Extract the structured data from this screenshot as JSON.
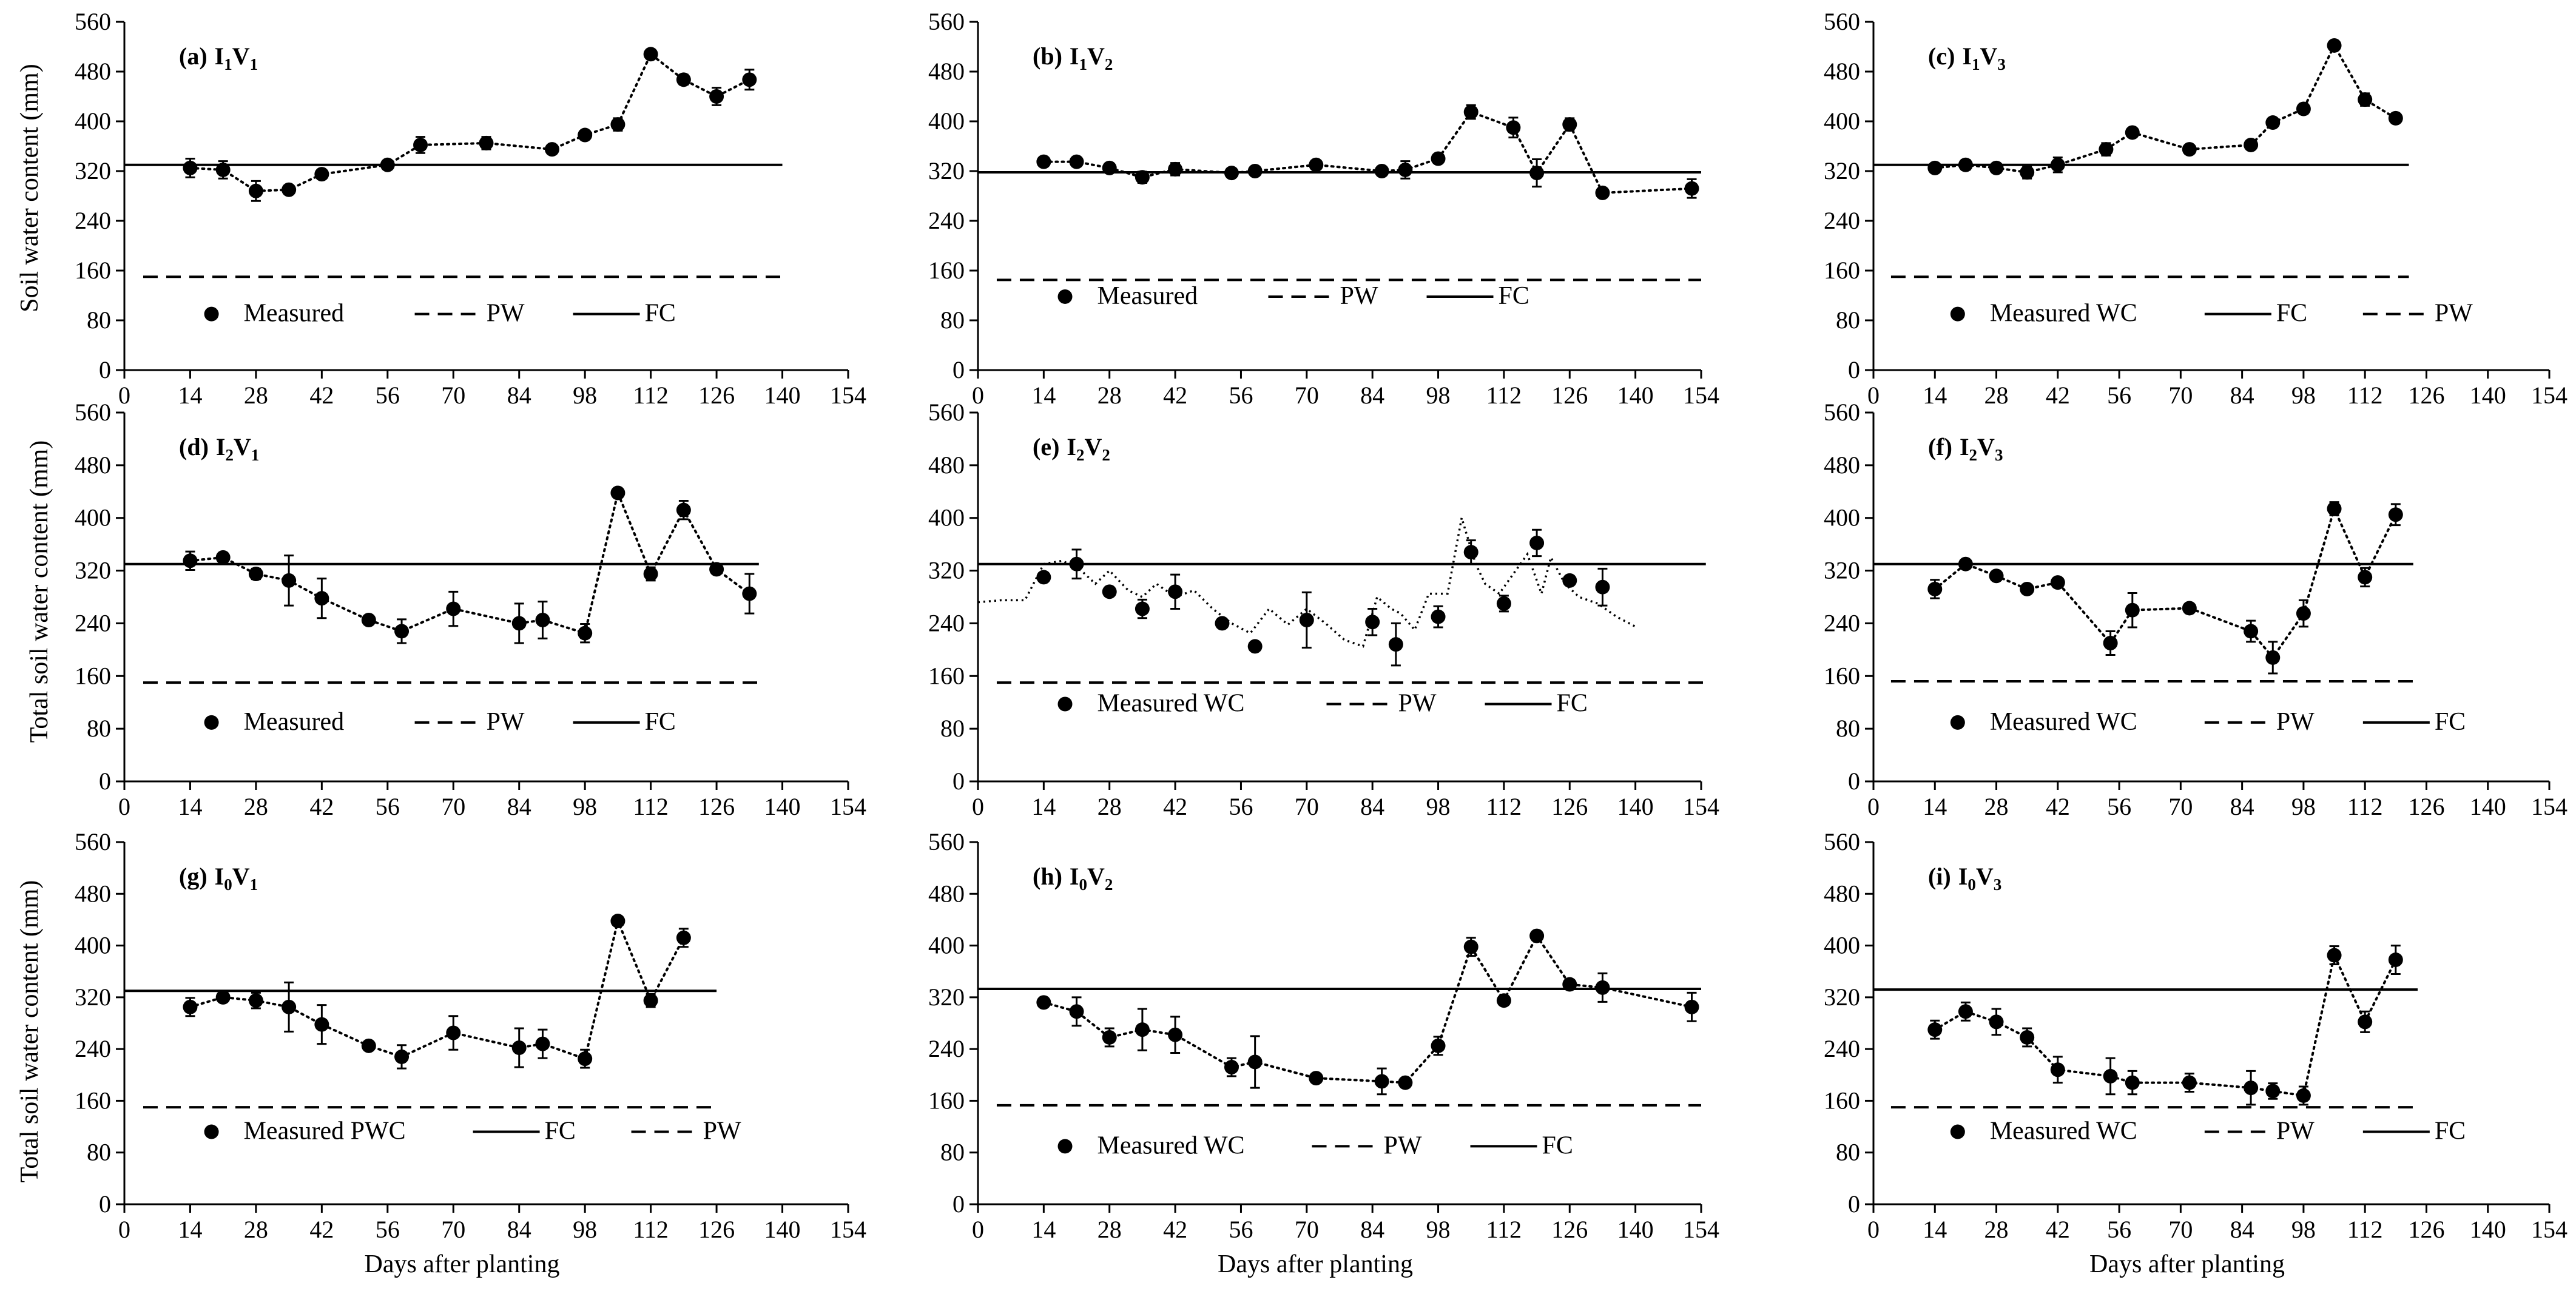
{
  "figure": {
    "xlabel": "Days after planting",
    "ylabels": {
      "row1": "Soil water content (mm)",
      "row2": "Total soil water content (mm)",
      "row3": "Total soil water content (mm)"
    },
    "x_ticks": [
      0,
      14,
      28,
      42,
      56,
      70,
      84,
      98,
      112,
      126,
      140,
      154
    ],
    "y_ticks": [
      0,
      80,
      160,
      240,
      320,
      400,
      480,
      560
    ]
  },
  "chart_data": [
    {
      "id": "a",
      "label": "(a)",
      "treatment": {
        "I": "1",
        "V": "1"
      },
      "type": "scatter",
      "xlim": [
        0,
        154
      ],
      "ylim": [
        0,
        560
      ],
      "xlabel": "",
      "ylabel": "Soil water content (mm)",
      "fc": 330,
      "pw": 150,
      "fc_range": [
        0,
        140
      ],
      "pw_range": [
        0,
        140
      ],
      "legend": [
        {
          "type": "marker",
          "text": "Measured"
        },
        {
          "type": "dash",
          "text": "PW"
        },
        {
          "type": "solid",
          "text": "FC"
        }
      ],
      "series": [
        {
          "name": "Measured",
          "x": [
            14,
            21,
            28,
            35,
            42,
            56,
            63,
            77,
            91,
            98,
            105,
            112,
            119,
            126,
            133
          ],
          "y": [
            325,
            322,
            288,
            290,
            315,
            330,
            362,
            365,
            355,
            378,
            395,
            508,
            467,
            440,
            467
          ],
          "err": [
            15,
            14,
            16,
            6,
            6,
            5,
            13,
            10,
            6,
            6,
            10,
            6,
            8,
            14,
            16
          ]
        }
      ],
      "simulated": null
    },
    {
      "id": "b",
      "label": "(b)",
      "treatment": {
        "I": "1",
        "V": "2"
      },
      "type": "scatter",
      "xlim": [
        0,
        154
      ],
      "ylim": [
        0,
        560
      ],
      "xlabel": "",
      "ylabel": "",
      "fc": 318,
      "pw": 145,
      "fc_range": [
        0,
        154
      ],
      "pw_range": [
        0,
        154
      ],
      "legend": [
        {
          "type": "marker",
          "text": "Measured"
        },
        {
          "type": "dash",
          "text": "PW"
        },
        {
          "type": "solid",
          "text": "FC"
        }
      ],
      "series": [
        {
          "name": "Measured",
          "x": [
            14,
            21,
            28,
            35,
            42,
            54,
            59,
            72,
            86,
            91,
            98,
            105,
            114,
            119,
            126,
            133,
            152
          ],
          "y": [
            335,
            335,
            325,
            310,
            323,
            317,
            320,
            330,
            320,
            322,
            340,
            415,
            390,
            317,
            395,
            285,
            292
          ],
          "err": [
            4,
            4,
            4,
            9,
            10,
            5,
            5,
            4,
            5,
            14,
            5,
            11,
            16,
            22,
            10,
            5,
            15
          ]
        }
      ],
      "simulated": null
    },
    {
      "id": "c",
      "label": "(c)",
      "treatment": {
        "I": "1",
        "V": "3"
      },
      "type": "scatter",
      "xlim": [
        0,
        154
      ],
      "ylim": [
        0,
        560
      ],
      "xlabel": "",
      "ylabel": "",
      "fc": 330,
      "pw": 150,
      "fc_range": [
        0,
        122
      ],
      "pw_range": [
        0,
        122
      ],
      "legend": [
        {
          "type": "marker",
          "text": "Measured WC"
        },
        {
          "type": "solid",
          "text": "FC"
        },
        {
          "type": "dash",
          "text": "PW"
        }
      ],
      "series": [
        {
          "name": "Measured WC",
          "x": [
            14,
            21,
            28,
            35,
            42,
            53,
            59,
            72,
            86,
            91,
            98,
            105,
            112,
            119
          ],
          "y": [
            325,
            330,
            325,
            318,
            330,
            355,
            382,
            355,
            362,
            398,
            420,
            522,
            435,
            405
          ],
          "err": [
            6,
            8,
            6,
            10,
            12,
            10,
            6,
            5,
            5,
            7,
            8,
            6,
            10,
            6
          ]
        }
      ],
      "simulated": null
    },
    {
      "id": "d",
      "label": "(d)",
      "treatment": {
        "I": "2",
        "V": "1"
      },
      "type": "scatter",
      "xlim": [
        0,
        154
      ],
      "ylim": [
        0,
        560
      ],
      "xlabel": "",
      "ylabel": "Total soil water content (mm)",
      "fc": 330,
      "pw": 150,
      "fc_range": [
        0,
        135
      ],
      "pw_range": [
        0,
        135
      ],
      "legend": [
        {
          "type": "marker",
          "text": "Measured"
        },
        {
          "type": "dash",
          "text": "PW"
        },
        {
          "type": "solid",
          "text": "FC"
        }
      ],
      "series": [
        {
          "name": "Measured",
          "x": [
            14,
            21,
            28,
            35,
            42,
            52,
            59,
            70,
            84,
            89,
            98,
            105,
            112,
            119,
            126,
            133
          ],
          "y": [
            335,
            340,
            315,
            305,
            278,
            245,
            228,
            262,
            240,
            245,
            225,
            438,
            315,
            412,
            322,
            285
          ],
          "err": [
            14,
            6,
            8,
            38,
            30,
            6,
            18,
            26,
            30,
            28,
            14,
            6,
            10,
            14,
            6,
            30
          ]
        }
      ],
      "simulated": null
    },
    {
      "id": "e",
      "label": "(e)",
      "treatment": {
        "I": "2",
        "V": "2"
      },
      "type": "scatter",
      "xlim": [
        0,
        154
      ],
      "ylim": [
        0,
        560
      ],
      "xlabel": "",
      "ylabel": "",
      "fc": 330,
      "pw": 150,
      "fc_range": [
        0,
        155
      ],
      "pw_range": [
        0,
        155
      ],
      "legend": [
        {
          "type": "marker",
          "text": "Measured  WC"
        },
        {
          "type": "dash",
          "text": "PW"
        },
        {
          "type": "solid",
          "text": "FC"
        }
      ],
      "series": [
        {
          "name": "Measured WC",
          "x": [
            14,
            21,
            28,
            35,
            42,
            52,
            59,
            70,
            84,
            89,
            98,
            105,
            112,
            119,
            126,
            133
          ],
          "y": [
            310,
            330,
            288,
            262,
            288,
            240,
            205,
            245,
            242,
            208,
            250,
            348,
            270,
            362,
            305,
            295
          ],
          "err": [
            6,
            22,
            6,
            14,
            26,
            6,
            6,
            42,
            20,
            32,
            16,
            18,
            12,
            20,
            6,
            28
          ]
        }
      ],
      "simulated": {
        "x": [
          0,
          5,
          10,
          14,
          18,
          22,
          25,
          28,
          32,
          35,
          38,
          42,
          46,
          50,
          54,
          58,
          62,
          66,
          70,
          74,
          78,
          82,
          85,
          88,
          90,
          93,
          96,
          100,
          103,
          106,
          108,
          111,
          114,
          117,
          120,
          122,
          125,
          128,
          132,
          136,
          140
        ],
        "y": [
          272,
          275,
          275,
          330,
          335,
          320,
          300,
          320,
          290,
          280,
          300,
          280,
          290,
          262,
          240,
          225,
          262,
          238,
          262,
          240,
          215,
          205,
          280,
          262,
          255,
          230,
          285,
          285,
          400,
          330,
          300,
          285,
          315,
          345,
          285,
          340,
          300,
          280,
          270,
          250,
          235
        ]
      }
    },
    {
      "id": "f",
      "label": "(f)",
      "treatment": {
        "I": "2",
        "V": "3"
      },
      "type": "scatter",
      "xlim": [
        0,
        154
      ],
      "ylim": [
        0,
        560
      ],
      "xlabel": "",
      "ylabel": "",
      "fc": 330,
      "pw": 152,
      "fc_range": [
        0,
        123
      ],
      "pw_range": [
        0,
        123
      ],
      "legend": [
        {
          "type": "marker",
          "text": "Measured WC"
        },
        {
          "type": "dash",
          "text": "PW"
        },
        {
          "type": "solid",
          "text": "FC"
        }
      ],
      "series": [
        {
          "name": "Measured WC",
          "x": [
            14,
            21,
            28,
            35,
            42,
            54,
            59,
            72,
            86,
            91,
            98,
            105,
            112,
            119
          ],
          "y": [
            292,
            330,
            312,
            292,
            302,
            210,
            260,
            263,
            228,
            188,
            255,
            414,
            310,
            405
          ],
          "err": [
            14,
            6,
            6,
            6,
            6,
            18,
            26,
            6,
            16,
            24,
            20,
            10,
            14,
            16
          ]
        }
      ],
      "simulated": null
    },
    {
      "id": "g",
      "label": "(g)",
      "treatment": {
        "I": "0",
        "V": "1"
      },
      "type": "scatter",
      "xlim": [
        0,
        154
      ],
      "ylim": [
        0,
        560
      ],
      "xlabel": "Days after planting",
      "ylabel": "Total soil water content (mm)",
      "fc": 330,
      "pw": 150,
      "fc_range": [
        0,
        126
      ],
      "pw_range": [
        0,
        126
      ],
      "legend": [
        {
          "type": "marker",
          "text": "Measured PWC"
        },
        {
          "type": "solid",
          "text": "FC"
        },
        {
          "type": "dash",
          "text": "PW"
        }
      ],
      "series": [
        {
          "name": "Measured PWC",
          "x": [
            14,
            21,
            28,
            35,
            42,
            52,
            59,
            70,
            84,
            89,
            98,
            105,
            112,
            119
          ],
          "y": [
            305,
            320,
            315,
            305,
            278,
            245,
            228,
            265,
            242,
            248,
            225,
            438,
            315,
            412
          ],
          "err": [
            14,
            6,
            12,
            38,
            30,
            6,
            18,
            26,
            30,
            22,
            14,
            6,
            10,
            14
          ]
        }
      ],
      "simulated": null
    },
    {
      "id": "h",
      "label": "(h)",
      "treatment": {
        "I": "0",
        "V": "2"
      },
      "type": "scatter",
      "xlim": [
        0,
        154
      ],
      "ylim": [
        0,
        560
      ],
      "xlabel": "Days after planting",
      "ylabel": "",
      "fc": 333,
      "pw": 153,
      "fc_range": [
        0,
        154
      ],
      "pw_range": [
        0,
        154
      ],
      "legend": [
        {
          "type": "marker",
          "text": "Measured WC"
        },
        {
          "type": "dash",
          "text": "PW"
        },
        {
          "type": "solid",
          "text": "FC"
        }
      ],
      "series": [
        {
          "name": "Measured WC",
          "x": [
            14,
            21,
            28,
            35,
            42,
            54,
            59,
            72,
            86,
            91,
            98,
            105,
            112,
            119,
            126,
            133,
            152
          ],
          "y": [
            312,
            298,
            258,
            270,
            262,
            212,
            220,
            195,
            190,
            188,
            245,
            398,
            315,
            415,
            340,
            335,
            305
          ],
          "err": [
            6,
            22,
            14,
            32,
            28,
            14,
            40,
            6,
            20,
            6,
            14,
            14,
            6,
            6,
            6,
            22,
            22
          ]
        }
      ],
      "simulated": null
    },
    {
      "id": "i",
      "label": "(i)",
      "treatment": {
        "I": "0",
        "V": "3"
      },
      "type": "scatter",
      "xlim": [
        0,
        154
      ],
      "ylim": [
        0,
        560
      ],
      "xlabel": "Days after planting",
      "ylabel": "",
      "fc": 332,
      "pw": 150,
      "fc_range": [
        0,
        124
      ],
      "pw_range": [
        0,
        124
      ],
      "legend": [
        {
          "type": "marker",
          "text": "Measured WC"
        },
        {
          "type": "dash",
          "text": "PW"
        },
        {
          "type": "solid",
          "text": "FC"
        }
      ],
      "series": [
        {
          "name": "Measured WC",
          "x": [
            14,
            21,
            28,
            35,
            42,
            54,
            59,
            72,
            86,
            91,
            98,
            105,
            112,
            119
          ],
          "y": [
            270,
            298,
            282,
            258,
            208,
            198,
            188,
            188,
            180,
            175,
            168,
            385,
            282,
            378
          ],
          "err": [
            14,
            14,
            20,
            14,
            20,
            28,
            18,
            14,
            26,
            12,
            14,
            14,
            16,
            22
          ]
        }
      ],
      "simulated": null
    }
  ]
}
